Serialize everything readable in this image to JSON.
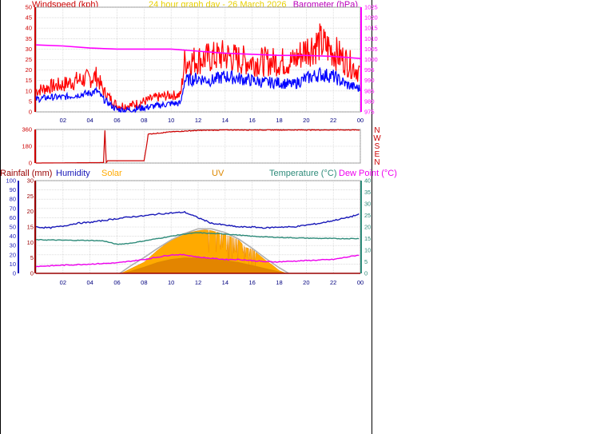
{
  "header": {
    "title": "24 hour graph day - 26 March 2026",
    "windspeed_label": "Windspeed (kph)",
    "barometer_label": "Barometer (hPa)"
  },
  "legend": {
    "rainfall": "Rainfall (mm)",
    "humidity": "Humidity",
    "solar": "Solar",
    "uv": "UV",
    "temperature": "Temperature (°C)",
    "dew_point": "Dew Point (°C)"
  },
  "colors": {
    "wind_gust": "#ff0000",
    "wind_avg": "#0000ff",
    "barometer": "#ff00ff",
    "direction": "#cc0000",
    "rainfall": "#990000",
    "humidity": "#1818b8",
    "solar": "#ffaa00",
    "uv": "#dd8800",
    "temperature": "#2e8b7a",
    "dew_point": "#ee00ee",
    "grid": "#c8c8c8"
  },
  "chart_data": [
    {
      "type": "line",
      "id": "wind",
      "x_ticks": [
        "02",
        "04",
        "06",
        "08",
        "10",
        "12",
        "14",
        "16",
        "18",
        "20",
        "22",
        "00"
      ],
      "xlim": [
        0,
        24
      ],
      "ylim_left": [
        0,
        50
      ],
      "yticks_left": [
        "0",
        "5",
        "10",
        "15",
        "20",
        "25",
        "30",
        "35",
        "40",
        "45",
        "50"
      ],
      "ylim_right": [
        975,
        1025
      ],
      "yticks_right": [
        "975",
        "980",
        "985",
        "990",
        "995",
        "1000",
        "1005",
        "1010",
        "1015",
        "1020",
        "1025"
      ],
      "series": [
        {
          "name": "Windspeed",
          "key": "avg",
          "x": [
            0,
            1,
            2,
            3,
            4,
            4.5,
            5,
            6,
            7,
            8,
            9,
            10,
            10.7,
            11,
            12,
            13,
            14,
            15,
            16,
            17,
            18,
            19,
            20,
            21,
            22,
            23,
            24
          ],
          "y": [
            6,
            7,
            7,
            8,
            9,
            10,
            6,
            1,
            1,
            2,
            3,
            4,
            4,
            15,
            16,
            15,
            17,
            16,
            15,
            14,
            14,
            13,
            16,
            18,
            17,
            13,
            11
          ]
        },
        {
          "name": "Gust",
          "x": [
            0,
            1,
            2,
            3,
            4,
            4.5,
            5,
            6,
            7,
            8,
            9,
            10,
            10.7,
            11,
            12,
            13,
            14,
            15,
            16,
            17,
            18,
            19,
            20,
            21,
            22,
            23,
            24
          ],
          "y": [
            10,
            12,
            13,
            15,
            16,
            17,
            10,
            3,
            3,
            5,
            7,
            8,
            8,
            24,
            25,
            26,
            27,
            25,
            24,
            24,
            24,
            24,
            30,
            33,
            29,
            24,
            19
          ]
        },
        {
          "name": "Barometer",
          "axis": "right",
          "x": [
            0,
            2,
            4,
            6,
            8,
            10,
            12,
            14,
            16,
            18,
            20,
            22,
            24
          ],
          "y": [
            1007,
            1006.5,
            1005.5,
            1005,
            1005,
            1005,
            1004,
            1003,
            1002.5,
            1002,
            1002,
            1001.5,
            1000.5
          ]
        }
      ]
    },
    {
      "type": "line",
      "id": "direction",
      "xlim": [
        0,
        24
      ],
      "ylim": [
        0,
        360
      ],
      "yticks": [
        "0",
        "180",
        "360"
      ],
      "compass": [
        "N",
        "W",
        "S",
        "E",
        "N"
      ],
      "series": [
        {
          "name": "Direction",
          "x": [
            0,
            5,
            5.1,
            5.2,
            5.3,
            6,
            8,
            8.2,
            8.3,
            9,
            10,
            12,
            14,
            16,
            18,
            20,
            22,
            24
          ],
          "y": [
            0,
            5,
            350,
            5,
            25,
            25,
            25,
            200,
            310,
            320,
            335,
            350,
            355,
            355,
            355,
            355,
            355,
            355
          ]
        }
      ]
    },
    {
      "type": "line",
      "id": "environment",
      "x_ticks": [
        "02",
        "04",
        "06",
        "08",
        "10",
        "12",
        "14",
        "16",
        "18",
        "20",
        "22",
        "00"
      ],
      "xlim": [
        0,
        24
      ],
      "ylim_left": [
        0,
        100
      ],
      "yticks_left": [
        "0",
        "10",
        "20",
        "30",
        "40",
        "50",
        "60",
        "70",
        "80",
        "90",
        "100"
      ],
      "ylim_mid": [
        0,
        30
      ],
      "yticks_mid": [
        "0",
        "5",
        "10",
        "15",
        "20",
        "25",
        "30"
      ],
      "ylim_right": [
        0,
        40
      ],
      "yticks_right": [
        "0",
        "5",
        "10",
        "15",
        "20",
        "25",
        "30",
        "35",
        "40"
      ],
      "series": [
        {
          "name": "Humidity",
          "axis": "left",
          "x": [
            0,
            1,
            2,
            3,
            4,
            5,
            6,
            7,
            8,
            9,
            10,
            11,
            12,
            13,
            14,
            15,
            16,
            17,
            18,
            19,
            20,
            21,
            22,
            23,
            24
          ],
          "y": [
            50,
            49,
            51,
            54,
            55,
            57,
            59,
            61,
            62,
            64,
            65,
            66,
            60,
            54,
            52,
            50,
            50,
            49,
            50,
            50,
            52,
            54,
            57,
            60,
            64
          ]
        },
        {
          "name": "Temperature",
          "axis": "right",
          "x": [
            0,
            2,
            4,
            5,
            6,
            7,
            8,
            9,
            10,
            11,
            12,
            13,
            14,
            15,
            16,
            17,
            18,
            20,
            22,
            24
          ],
          "y": [
            14.5,
            14.3,
            14.2,
            14,
            12.5,
            13,
            14,
            15,
            16,
            17,
            17.5,
            17.2,
            17,
            16.5,
            16,
            15.7,
            15.5,
            15.2,
            15,
            15
          ]
        },
        {
          "name": "Dew Point",
          "axis": "right",
          "x": [
            0,
            2,
            4,
            6,
            8,
            9,
            10,
            11,
            12,
            13,
            14,
            15,
            16,
            17,
            18,
            20,
            22,
            24
          ],
          "y": [
            3,
            3.5,
            4,
            4.5,
            6,
            7,
            8,
            8,
            7,
            6.5,
            6,
            6,
            5.5,
            5,
            5,
            5.5,
            6,
            8
          ]
        },
        {
          "name": "Solar",
          "axis": "left",
          "fill": true,
          "x": [
            6.3,
            7,
            8,
            9,
            10,
            11,
            12,
            12.5,
            13,
            14,
            15,
            15.5,
            16,
            16.5,
            17,
            17.5,
            18,
            18.5
          ],
          "y": [
            0,
            5,
            12,
            25,
            36,
            43,
            46,
            47,
            46,
            42,
            36,
            28,
            26,
            20,
            14,
            9,
            3,
            0
          ]
        },
        {
          "name": "Solar max",
          "axis": "left",
          "x": [
            6.2,
            7,
            8,
            9,
            10,
            11,
            12,
            13,
            14,
            15,
            16,
            17,
            18,
            18.7
          ],
          "y": [
            0,
            8,
            17,
            27,
            36,
            43,
            48,
            48,
            44,
            37,
            27,
            16,
            6,
            0
          ]
        },
        {
          "name": "UV",
          "axis": "mid",
          "x": [
            6.5,
            8,
            9,
            10,
            11,
            12,
            13,
            14,
            15,
            16,
            17,
            18,
            18.5
          ],
          "y": [
            0,
            2,
            3.5,
            4.5,
            5,
            5,
            4.8,
            4.2,
            3.5,
            2.5,
            1.5,
            0.5,
            0
          ]
        }
      ]
    }
  ]
}
